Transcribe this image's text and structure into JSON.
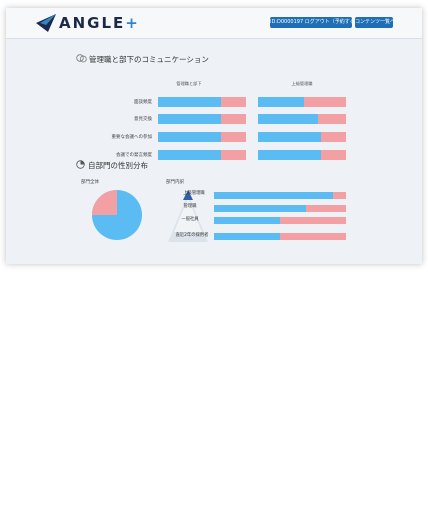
{
  "header": {
    "logo_text": "ANGLE",
    "logo_plus": "+",
    "logout_label": "ID:D0000197  ログアウト（予約する）",
    "contents_label": "コンテンツ一覧へ"
  },
  "communication": {
    "title": "管理職と部下のコミュニケーション",
    "col_subordinate": "管理職と部下",
    "col_superior": "上級管理職",
    "rows": [
      {
        "label": "面談頻度",
        "left_blue": 0.72,
        "right_blue": 0.52
      },
      {
        "label": "意見交換",
        "left_blue": 0.72,
        "right_blue": 0.68
      },
      {
        "label": "重要な会議への参加",
        "left_blue": 0.72,
        "right_blue": 0.72
      },
      {
        "label": "会議での発言頻度",
        "left_blue": 0.72,
        "right_blue": 0.72
      }
    ]
  },
  "gender": {
    "title": "自部門の性別分布",
    "dept_all_label": "部門全体",
    "dept_inner_label": "部門内訳",
    "pie_blue_fraction": 0.75,
    "levels": [
      {
        "label": "上級管理職",
        "blue": 0.9
      },
      {
        "label": "管理職",
        "blue": 0.7
      },
      {
        "label": "一般社員",
        "blue": 0.5
      },
      {
        "label": "直近2年の採用者",
        "blue": 0.5
      }
    ]
  },
  "colors": {
    "male": "#5bbcf4",
    "female": "#f2a0a3",
    "button": "#1f6fb6"
  }
}
